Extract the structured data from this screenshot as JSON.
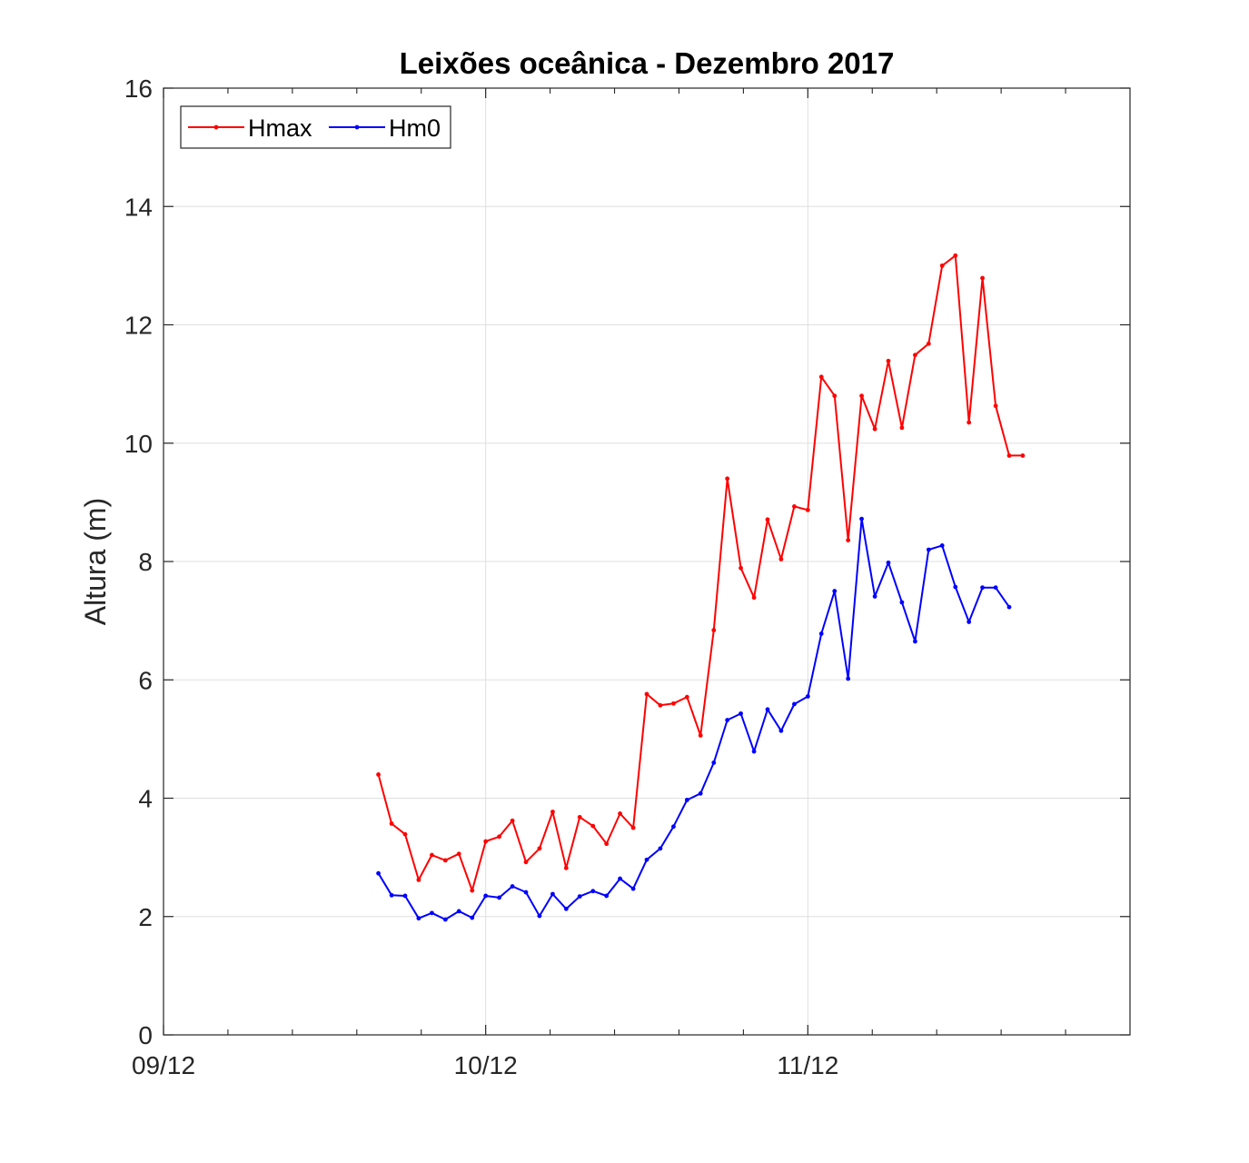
{
  "chart_data": {
    "type": "line",
    "title": "Leixões oceânica - Dezembro 2017",
    "xlabel": "",
    "ylabel": "Altura (m)",
    "x_unit": "days (December 2017)",
    "xlim": [
      9,
      12
    ],
    "ylim": [
      0,
      16
    ],
    "x_ticks": [
      {
        "value": 9,
        "label": "09/12"
      },
      {
        "value": 10,
        "label": "10/12"
      },
      {
        "value": 11,
        "label": "11/12"
      }
    ],
    "x_minor_ticks": [
      9.2,
      9.4,
      9.6,
      9.8,
      10.2,
      10.4,
      10.6,
      10.8,
      11.2,
      11.4,
      11.6,
      11.8
    ],
    "y_ticks": [
      {
        "value": 0,
        "label": "0"
      },
      {
        "value": 2,
        "label": "2"
      },
      {
        "value": 4,
        "label": "4"
      },
      {
        "value": 6,
        "label": "6"
      },
      {
        "value": 8,
        "label": "8"
      },
      {
        "value": 10,
        "label": "10"
      },
      {
        "value": 12,
        "label": "12"
      },
      {
        "value": 14,
        "label": "14"
      },
      {
        "value": 16,
        "label": "16"
      }
    ],
    "grid": true,
    "legend_position": "top-left",
    "series": [
      {
        "name": "Hmax",
        "color": "#ff0000",
        "x": [
          9.667,
          9.708,
          9.75,
          9.792,
          9.833,
          9.875,
          9.917,
          9.958,
          10.0,
          10.042,
          10.083,
          10.125,
          10.167,
          10.208,
          10.25,
          10.292,
          10.333,
          10.375,
          10.417,
          10.458,
          10.5,
          10.542,
          10.583,
          10.625,
          10.667,
          10.708,
          10.75,
          10.792,
          10.833,
          10.875,
          10.917,
          10.958,
          11.0,
          11.042,
          11.083,
          11.125,
          11.167,
          11.208,
          11.25,
          11.292,
          11.333,
          11.375,
          11.417,
          11.458,
          11.5,
          11.542,
          11.583,
          11.625,
          11.667
        ],
        "y": [
          4.4,
          3.57,
          3.39,
          2.62,
          3.04,
          2.95,
          3.06,
          2.44,
          3.27,
          3.35,
          3.62,
          2.92,
          3.15,
          3.77,
          2.82,
          3.68,
          3.53,
          3.23,
          3.74,
          3.5,
          5.76,
          5.57,
          5.6,
          5.71,
          5.06,
          6.84,
          9.4,
          7.89,
          7.39,
          8.71,
          8.04,
          8.93,
          8.87,
          11.12,
          10.8,
          8.36,
          10.8,
          10.24,
          11.39,
          10.26,
          11.49,
          11.68,
          13.0,
          13.17,
          10.35,
          12.79,
          10.63,
          9.79,
          9.79
        ]
      },
      {
        "name": "Hm0",
        "color": "#0000ff",
        "x": [
          9.667,
          9.708,
          9.75,
          9.792,
          9.833,
          9.875,
          9.917,
          9.958,
          10.0,
          10.042,
          10.083,
          10.125,
          10.167,
          10.208,
          10.25,
          10.292,
          10.333,
          10.375,
          10.417,
          10.458,
          10.5,
          10.542,
          10.583,
          10.625,
          10.667,
          10.708,
          10.75,
          10.792,
          10.833,
          10.875,
          10.917,
          10.958,
          11.0,
          11.042,
          11.083,
          11.125,
          11.167,
          11.208,
          11.25,
          11.292,
          11.333,
          11.375,
          11.417,
          11.458,
          11.5,
          11.542,
          11.583,
          11.625
        ],
        "y": [
          2.73,
          2.36,
          2.35,
          1.97,
          2.06,
          1.95,
          2.09,
          1.98,
          2.35,
          2.32,
          2.51,
          2.41,
          2.01,
          2.38,
          2.13,
          2.34,
          2.43,
          2.35,
          2.64,
          2.47,
          2.96,
          3.15,
          3.52,
          3.97,
          4.08,
          4.6,
          5.32,
          5.43,
          4.79,
          5.5,
          5.14,
          5.59,
          5.72,
          6.78,
          7.5,
          6.02,
          8.72,
          7.41,
          7.98,
          7.31,
          6.65,
          8.2,
          8.27,
          7.57,
          6.98,
          7.56,
          7.56,
          7.23
        ]
      }
    ]
  }
}
